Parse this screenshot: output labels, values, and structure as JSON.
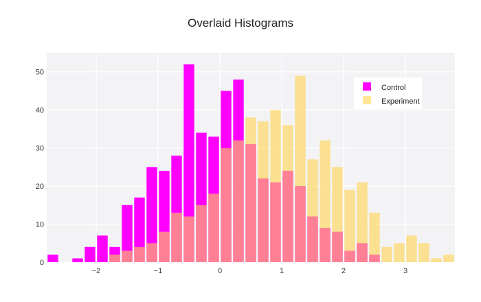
{
  "chart_data": {
    "type": "bar",
    "title": "Overlaid Histograms",
    "xlabel": "",
    "ylabel": "",
    "xlim": [
      -2.8,
      3.8
    ],
    "ylim": [
      0,
      55
    ],
    "x_ticks": [
      -2,
      -1,
      0,
      1,
      2,
      3
    ],
    "x_tick_labels": [
      "−2",
      "−1",
      "0",
      "1",
      "2",
      "3"
    ],
    "y_ticks": [
      0,
      10,
      20,
      30,
      40,
      50
    ],
    "grid": true,
    "barmode": "overlay",
    "bin_width": 0.2,
    "legend_position": "top-right",
    "series": [
      {
        "name": "Control",
        "color": "#ff00ff",
        "opacity": 1,
        "x": [
          -2.7,
          -2.3,
          -2.1,
          -1.9,
          -1.7,
          -1.5,
          -1.3,
          -1.1,
          -0.9,
          -0.7,
          -0.5,
          -0.3,
          -0.1,
          0.1,
          0.3,
          0.5,
          0.7,
          0.9,
          1.1,
          1.3,
          1.5,
          1.7,
          1.9,
          2.1,
          2.3,
          2.5
        ],
        "values": [
          2,
          1,
          4,
          7,
          4,
          15,
          17,
          25,
          24,
          28,
          52,
          34,
          33,
          45,
          48,
          31,
          22,
          21,
          24,
          20,
          12,
          9,
          8,
          3,
          5,
          2
        ]
      },
      {
        "name": "Experiment",
        "color": "#ffd34d",
        "opacity": 0.6,
        "x": [
          -1.7,
          -1.5,
          -1.3,
          -1.1,
          -0.9,
          -0.7,
          -0.5,
          -0.3,
          -0.1,
          0.1,
          0.3,
          0.5,
          0.7,
          0.9,
          1.1,
          1.3,
          1.5,
          1.7,
          1.9,
          2.1,
          2.3,
          2.5,
          2.7,
          2.9,
          3.1,
          3.3,
          3.5,
          3.7
        ],
        "values": [
          2,
          3,
          4,
          5,
          8,
          13,
          12,
          15,
          18,
          30,
          32,
          38,
          37,
          40,
          36,
          49,
          27,
          32,
          25,
          19,
          21,
          13,
          4,
          5,
          7,
          5,
          1,
          2
        ]
      }
    ]
  }
}
